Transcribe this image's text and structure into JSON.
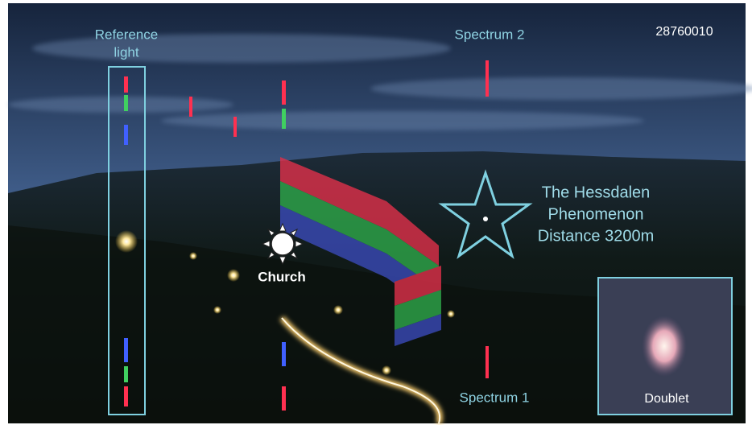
{
  "annotations": {
    "reference_label": [
      "Reference",
      "light"
    ],
    "spectrum_2": "Spectrum 2",
    "frame_id": "28760010",
    "phenomenon_label": [
      "The Hessdalen",
      "Phenomenon",
      "Distance 3200m"
    ],
    "church": "Church",
    "spectrum_1": "Spectrum 1",
    "doublet": "Doublet"
  }
}
